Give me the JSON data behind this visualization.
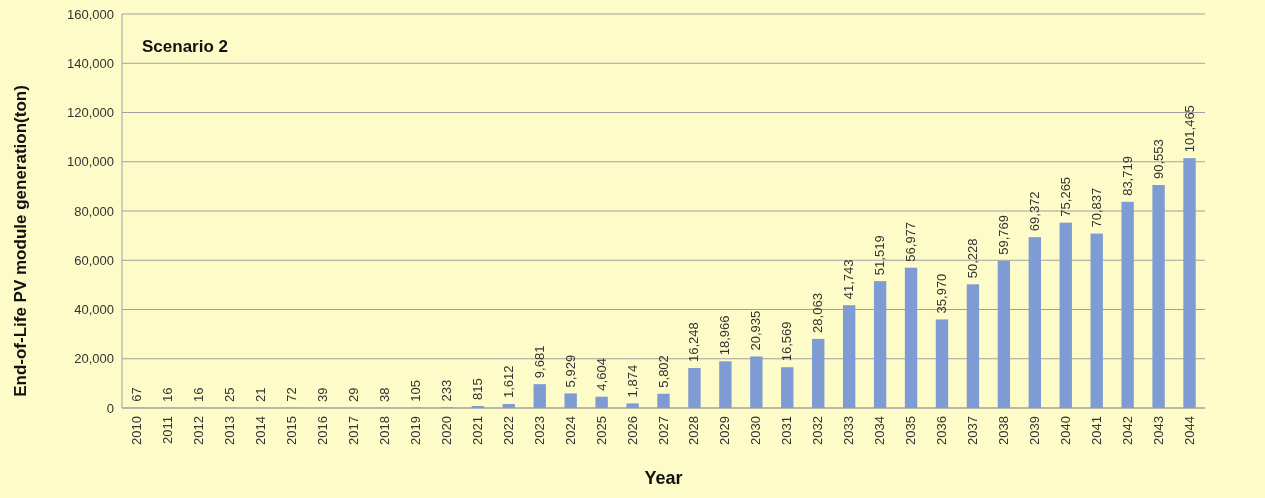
{
  "chart_data": {
    "type": "bar",
    "title": "Scenario 2",
    "xlabel": "Year",
    "ylabel": "End-of-Life PV module generation(ton)",
    "categories": [
      "2010",
      "2011",
      "2012",
      "2013",
      "2014",
      "2015",
      "2016",
      "2017",
      "2018",
      "2019",
      "2020",
      "2021",
      "2022",
      "2023",
      "2024",
      "2025",
      "2026",
      "2027",
      "2028",
      "2029",
      "2030",
      "2031",
      "2032",
      "2033",
      "2034",
      "2035",
      "2036",
      "2037",
      "2038",
      "2039",
      "2040",
      "2041",
      "2042",
      "2043",
      "2044"
    ],
    "values": [
      67,
      16,
      16,
      25,
      21,
      72,
      39,
      29,
      38,
      105,
      233,
      815,
      1612,
      9681,
      5929,
      4604,
      1874,
      5802,
      16248,
      18966,
      20935,
      16569,
      28063,
      41743,
      51519,
      56977,
      35970,
      50228,
      59769,
      69372,
      75265,
      70837,
      83719,
      90553,
      101465
    ],
    "value_labels": [
      "67",
      "16",
      "16",
      "25",
      "21",
      "72",
      "39",
      "29",
      "38",
      "105",
      "233",
      "815",
      "1,612",
      "9,681",
      "5,929",
      "4,604",
      "1,874",
      "5,802",
      "16,248",
      "18,966",
      "20,935",
      "16,569",
      "28,063",
      "41,743",
      "51,519",
      "56,977",
      "35,970",
      "50,228",
      "59,769",
      "69,372",
      "75,265",
      "70,837",
      "83,719",
      "90,553",
      "101,465"
    ],
    "color": "#7f9bd4",
    "ylim": [
      0,
      160000
    ],
    "yticks": [
      {
        "value": 0,
        "label": "0"
      },
      {
        "value": 20000,
        "label": "20,000"
      },
      {
        "value": 40000,
        "label": "40,000"
      },
      {
        "value": 60000,
        "label": "60,000"
      },
      {
        "value": 80000,
        "label": "80,000"
      },
      {
        "value": 100000,
        "label": "100,000"
      },
      {
        "value": 120000,
        "label": "120,000"
      },
      {
        "value": 140000,
        "label": "140,000"
      },
      {
        "value": 160000,
        "label": "160,000"
      }
    ],
    "grid": "y"
  }
}
